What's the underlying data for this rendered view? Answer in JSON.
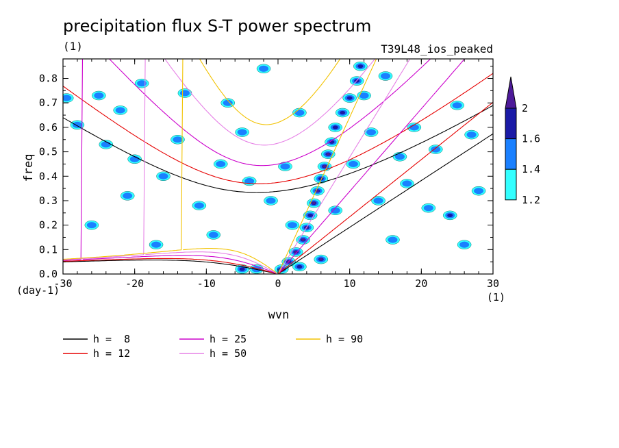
{
  "chart_data": {
    "type": "heatmap",
    "title": "precipitation flux S-T power spectrum",
    "subtitle_left": "(1)",
    "subtitle_right": "T39L48_ios_peaked",
    "xlabel": "wvn",
    "ylabel": "freq",
    "x_unit": "(1)",
    "y_unit": "(day-1)",
    "xlim": [
      -30,
      30
    ],
    "ylim": [
      0,
      0.88
    ],
    "x_ticks": [
      -30,
      -20,
      -10,
      0,
      10,
      20,
      30
    ],
    "x_tick_labels": [
      "-30",
      "-20",
      "-10",
      "0",
      "10",
      "20",
      "30"
    ],
    "y_ticks": [
      0.0,
      0.1,
      0.2,
      0.3,
      0.4,
      0.5,
      0.6,
      0.7,
      0.8
    ],
    "y_tick_labels": [
      "0.0",
      "0.1",
      "0.2",
      "0.3",
      "0.4",
      "0.5",
      "0.6",
      "0.7",
      "0.8"
    ],
    "colorbar": {
      "levels": [
        1.2,
        1.4,
        1.6,
        2
      ],
      "level_labels": [
        "1.2",
        "1.4",
        "1.6",
        "2"
      ],
      "colors": [
        "#33ffff",
        "#1a80ff",
        "#1a1aa6",
        "#4d1a99"
      ]
    },
    "curves": [
      {
        "name": "h =  8",
        "h": 8,
        "color": "#000000"
      },
      {
        "name": "h = 12",
        "h": 12,
        "color": "#e60000"
      },
      {
        "name": "h = 25",
        "h": 25,
        "color": "#cc00cc"
      },
      {
        "name": "h = 50",
        "h": 50,
        "color": "#e680e6"
      },
      {
        "name": "h = 90",
        "h": 90,
        "color": "#f2c200"
      }
    ],
    "curve_minima_freq": {
      "h=8": 0.335,
      "h=12": 0.37,
      "h=25": 0.44,
      "h=50": 0.53,
      "h=90": 0.61
    },
    "blobs": [
      {
        "x": 0.5,
        "y": 0.02,
        "level": 3
      },
      {
        "x": 1.5,
        "y": 0.05,
        "level": 3
      },
      {
        "x": 2.5,
        "y": 0.09,
        "level": 3
      },
      {
        "x": 3.5,
        "y": 0.14,
        "level": 3
      },
      {
        "x": 4,
        "y": 0.19,
        "level": 3
      },
      {
        "x": 4.5,
        "y": 0.24,
        "level": 2
      },
      {
        "x": 5,
        "y": 0.29,
        "level": 3
      },
      {
        "x": 5.5,
        "y": 0.34,
        "level": 3
      },
      {
        "x": 6,
        "y": 0.39,
        "level": 2
      },
      {
        "x": 6.5,
        "y": 0.44,
        "level": 3
      },
      {
        "x": 7,
        "y": 0.49,
        "level": 3
      },
      {
        "x": 7.5,
        "y": 0.54,
        "level": 2
      },
      {
        "x": 8,
        "y": 0.6,
        "level": 2
      },
      {
        "x": 9,
        "y": 0.66,
        "level": 2
      },
      {
        "x": 10,
        "y": 0.72,
        "level": 2
      },
      {
        "x": 11,
        "y": 0.79,
        "level": 2
      },
      {
        "x": 11.5,
        "y": 0.85,
        "level": 2
      },
      {
        "x": 6,
        "y": 0.06,
        "level": 3
      },
      {
        "x": -5,
        "y": 0.02,
        "level": 2
      },
      {
        "x": -3,
        "y": 0.02,
        "level": 1
      },
      {
        "x": 3,
        "y": 0.03,
        "level": 2
      },
      {
        "x": 2,
        "y": 0.2,
        "level": 1
      },
      {
        "x": 12,
        "y": 0.73,
        "level": 1
      },
      {
        "x": 13,
        "y": 0.58,
        "level": 1
      },
      {
        "x": 10.5,
        "y": 0.45,
        "level": 1
      },
      {
        "x": -24,
        "y": 0.53,
        "level": 1
      },
      {
        "x": -29.5,
        "y": 0.72,
        "level": 1
      },
      {
        "x": -25,
        "y": 0.73,
        "level": 1
      },
      {
        "x": -19,
        "y": 0.78,
        "level": 1
      },
      {
        "x": -21,
        "y": 0.32,
        "level": 1
      },
      {
        "x": -14,
        "y": 0.55,
        "level": 1
      },
      {
        "x": -11,
        "y": 0.28,
        "level": 1
      },
      {
        "x": -8,
        "y": 0.45,
        "level": 1
      },
      {
        "x": -5,
        "y": 0.58,
        "level": 1
      },
      {
        "x": -2,
        "y": 0.84,
        "level": 1
      },
      {
        "x": 3,
        "y": 0.66,
        "level": 1
      },
      {
        "x": 15,
        "y": 0.81,
        "level": 1
      },
      {
        "x": 18,
        "y": 0.37,
        "level": 1
      },
      {
        "x": 22,
        "y": 0.51,
        "level": 1
      },
      {
        "x": 27,
        "y": 0.57,
        "level": 1
      },
      {
        "x": 21,
        "y": 0.27,
        "level": 1
      },
      {
        "x": 24,
        "y": 0.24,
        "level": 2
      },
      {
        "x": 16,
        "y": 0.14,
        "level": 1
      },
      {
        "x": 26,
        "y": 0.12,
        "level": 1
      },
      {
        "x": -17,
        "y": 0.12,
        "level": 1
      },
      {
        "x": -26,
        "y": 0.2,
        "level": 1
      },
      {
        "x": -13,
        "y": 0.74,
        "level": 1
      },
      {
        "x": -7,
        "y": 0.7,
        "level": 1
      },
      {
        "x": 1,
        "y": 0.44,
        "level": 1
      },
      {
        "x": -1,
        "y": 0.3,
        "level": 1
      },
      {
        "x": 14,
        "y": 0.3,
        "level": 1
      },
      {
        "x": 19,
        "y": 0.6,
        "level": 1
      },
      {
        "x": 28,
        "y": 0.34,
        "level": 1
      },
      {
        "x": -28,
        "y": 0.61,
        "level": 1
      },
      {
        "x": -16,
        "y": 0.4,
        "level": 1
      },
      {
        "x": -9,
        "y": 0.16,
        "level": 1
      },
      {
        "x": 8,
        "y": 0.26,
        "level": 1
      },
      {
        "x": 17,
        "y": 0.48,
        "level": 1
      },
      {
        "x": 25,
        "y": 0.69,
        "level": 1
      },
      {
        "x": -22,
        "y": 0.67,
        "level": 1
      },
      {
        "x": -4,
        "y": 0.38,
        "level": 1
      },
      {
        "x": -20,
        "y": 0.47,
        "level": 1
      }
    ]
  },
  "legend": {
    "items": [
      {
        "label": "h =  8",
        "color": "#000000"
      },
      {
        "label": "h = 12",
        "color": "#e60000"
      },
      {
        "label": "h = 25",
        "color": "#cc00cc"
      },
      {
        "label": "h = 50",
        "color": "#e680e6"
      },
      {
        "label": "h = 90",
        "color": "#f2c200"
      }
    ]
  }
}
